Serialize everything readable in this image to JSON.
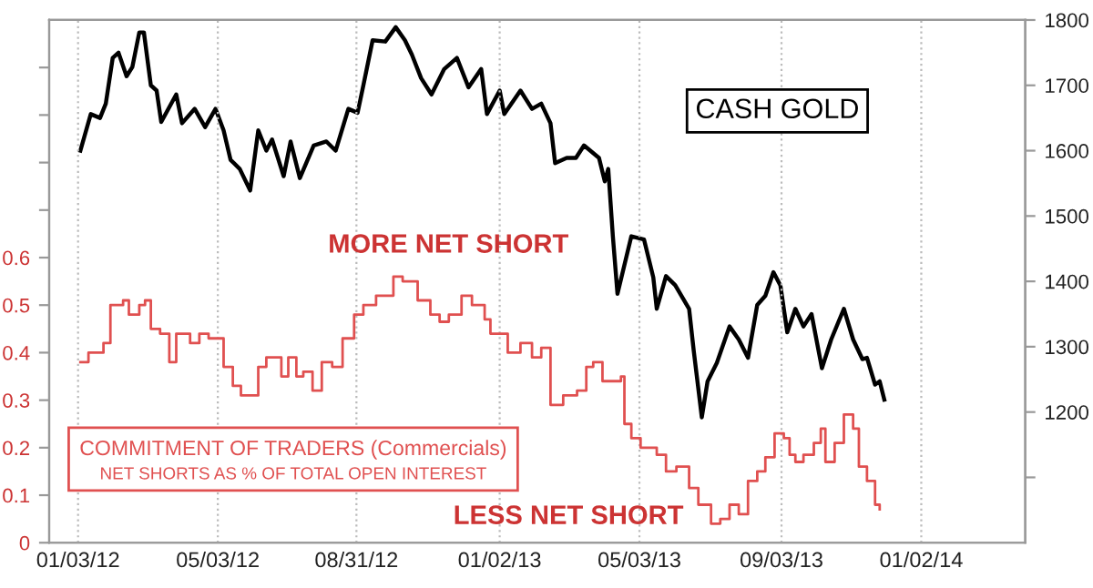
{
  "chart_data": {
    "type": "line",
    "xlim": [
      "2011-12-09",
      "2014-04-02"
    ],
    "xticks": [
      {
        "value": "2012-01-03",
        "label": "01/03/12"
      },
      {
        "value": "2012-05-03",
        "label": "05/03/12"
      },
      {
        "value": "2012-08-31",
        "label": "08/31/12"
      },
      {
        "value": "2013-01-02",
        "label": "01/02/13"
      },
      {
        "value": "2013-05-03",
        "label": "05/03/13"
      },
      {
        "value": "2013-09-03",
        "label": "09/03/13"
      },
      {
        "value": "2014-01-02",
        "label": "01/02/14"
      }
    ],
    "ylim": [
      0,
      1.1
    ],
    "yticks": [
      0,
      0.1,
      0.2,
      0.3,
      0.4,
      0.5,
      0.6,
      {
        "value": 0.7,
        "label": null
      },
      {
        "value": 0.8,
        "label": null
      },
      {
        "value": 0.9,
        "label": null
      },
      {
        "value": 1.0,
        "label": null
      }
    ],
    "y2lim": [
      1000,
      1800
    ],
    "y2ticks": [
      {
        "value": 1100,
        "label": null
      },
      1200,
      1300,
      1400,
      1500,
      1600,
      1700,
      1800
    ],
    "grid": "x",
    "legend": false,
    "marker": "none",
    "annotations": [
      "MORE NET SHORT",
      "NET SHORTS AS % OF TOTAL OPEN INTEREST",
      "LESS NET SHORT"
    ],
    "series": [
      {
        "name": "CASH GOLD",
        "axis": "y2",
        "color": "#000000",
        "x": [
          "2012-01-05",
          "2012-01-14",
          "2012-01-22",
          "2012-01-27",
          "2012-02-02",
          "2012-02-07",
          "2012-02-14",
          "2012-02-19",
          "2012-02-25",
          "2012-02-29",
          "2012-03-06",
          "2012-03-11",
          "2012-03-15",
          "2012-03-28",
          "2012-04-02",
          "2012-04-13",
          "2012-04-22",
          "2012-05-01",
          "2012-05-08",
          "2012-05-14",
          "2012-05-22",
          "2012-05-31",
          "2012-06-07",
          "2012-06-14",
          "2012-06-19",
          "2012-06-29",
          "2012-07-05",
          "2012-07-13",
          "2012-07-25",
          "2012-08-05",
          "2012-08-13",
          "2012-08-24",
          "2012-09-01",
          "2012-09-06",
          "2012-09-14",
          "2012-09-25",
          "2012-10-04",
          "2012-10-12",
          "2012-10-18",
          "2012-10-26",
          "2012-11-04",
          "2012-11-15",
          "2012-11-26",
          "2012-12-06",
          "2012-12-17",
          "2012-12-22",
          "2013-01-02",
          "2013-01-06",
          "2013-01-20",
          "2013-01-30",
          "2013-02-07",
          "2013-02-15",
          "2013-02-19",
          "2013-03-01",
          "2013-03-09",
          "2013-03-16",
          "2013-03-29",
          "2013-04-03",
          "2013-04-06",
          "2013-04-10",
          "2013-04-14",
          "2013-04-26",
          "2013-05-07",
          "2013-05-15",
          "2013-05-18",
          "2013-05-26",
          "2013-06-03",
          "2013-06-15",
          "2013-06-19",
          "2013-06-26",
          "2013-07-01",
          "2013-07-09",
          "2013-07-20",
          "2013-07-28",
          "2013-08-05",
          "2013-08-13",
          "2013-08-20",
          "2013-08-27",
          "2013-09-02",
          "2013-09-08",
          "2013-09-15",
          "2013-09-22",
          "2013-09-29",
          "2013-10-08",
          "2013-10-16",
          "2013-10-27",
          "2013-11-04",
          "2013-11-12",
          "2013-11-16",
          "2013-11-23",
          "2013-11-27",
          "2013-12-01"
        ],
        "values": [
          1600,
          1656,
          1650,
          1672,
          1742,
          1750,
          1714,
          1728,
          1781,
          1781,
          1700,
          1692,
          1644,
          1686,
          1642,
          1664,
          1636,
          1664,
          1631,
          1586,
          1572,
          1539,
          1631,
          1600,
          1617,
          1561,
          1614,
          1558,
          1608,
          1614,
          1600,
          1664,
          1658,
          1700,
          1769,
          1767,
          1789,
          1769,
          1747,
          1711,
          1686,
          1725,
          1742,
          1697,
          1725,
          1656,
          1692,
          1656,
          1692,
          1664,
          1672,
          1642,
          1581,
          1589,
          1589,
          1608,
          1589,
          1553,
          1572,
          1469,
          1381,
          1469,
          1464,
          1406,
          1358,
          1408,
          1394,
          1358,
          1294,
          1192,
          1247,
          1275,
          1331,
          1311,
          1283,
          1364,
          1378,
          1414,
          1394,
          1322,
          1358,
          1331,
          1350,
          1267,
          1311,
          1358,
          1311,
          1281,
          1283,
          1242,
          1247,
          1219
        ]
      },
      {
        "name": "COMMITMENT OF TRADERS (Commercials)",
        "type": "step",
        "color": "#e05050",
        "x": [
          "2012-01-05",
          "2012-01-12",
          "2012-01-25",
          "2012-01-31",
          "2012-02-11",
          "2012-02-16",
          "2012-02-25",
          "2012-03-01",
          "2012-03-06",
          "2012-03-14",
          "2012-03-22",
          "2012-03-28",
          "2012-04-09",
          "2012-04-17",
          "2012-04-25",
          "2012-05-08",
          "2012-05-16",
          "2012-05-23",
          "2012-06-07",
          "2012-06-14",
          "2012-06-27",
          "2012-07-03",
          "2012-07-10",
          "2012-07-16",
          "2012-07-24",
          "2012-08-01",
          "2012-08-10",
          "2012-08-19",
          "2012-08-29",
          "2012-09-06",
          "2012-09-17",
          "2012-10-02",
          "2012-10-10",
          "2012-10-23",
          "2012-11-03",
          "2012-11-11",
          "2012-11-19",
          "2012-11-30",
          "2012-12-09",
          "2012-12-20",
          "2012-12-25",
          "2013-01-09",
          "2013-01-20",
          "2013-01-30",
          "2013-02-07",
          "2013-02-15",
          "2013-02-26",
          "2013-03-10",
          "2013-03-18",
          "2013-03-24",
          "2013-04-01",
          "2013-04-17",
          "2013-04-20",
          "2013-04-26",
          "2013-05-04",
          "2013-05-18",
          "2013-05-26",
          "2013-06-04",
          "2013-06-15",
          "2013-06-23",
          "2013-07-04",
          "2013-07-12",
          "2013-07-20",
          "2013-07-28",
          "2013-08-05",
          "2013-08-13",
          "2013-08-20",
          "2013-08-28",
          "2013-09-05",
          "2013-09-10",
          "2013-09-15",
          "2013-09-22",
          "2013-10-01",
          "2013-10-07",
          "2013-10-11",
          "2013-10-19",
          "2013-10-27",
          "2013-11-04",
          "2013-11-09",
          "2013-11-16",
          "2013-11-23",
          "2013-11-27"
        ],
        "values": [
          0.38,
          0.4,
          0.42,
          0.5,
          0.51,
          0.48,
          0.5,
          0.51,
          0.45,
          0.44,
          0.38,
          0.44,
          0.42,
          0.44,
          0.43,
          0.37,
          0.33,
          0.31,
          0.37,
          0.39,
          0.35,
          0.39,
          0.35,
          0.36,
          0.32,
          0.38,
          0.37,
          0.43,
          0.48,
          0.5,
          0.52,
          0.56,
          0.55,
          0.51,
          0.48,
          0.465,
          0.48,
          0.52,
          0.5,
          0.47,
          0.44,
          0.4,
          0.42,
          0.39,
          0.41,
          0.29,
          0.31,
          0.32,
          0.37,
          0.38,
          0.34,
          0.35,
          0.25,
          0.22,
          0.2,
          0.185,
          0.15,
          0.16,
          0.115,
          0.08,
          0.04,
          0.05,
          0.08,
          0.06,
          0.13,
          0.15,
          0.18,
          0.23,
          0.22,
          0.185,
          0.17,
          0.185,
          0.21,
          0.24,
          0.17,
          0.21,
          0.27,
          0.24,
          0.16,
          0.13,
          0.08,
          0.07
        ]
      }
    ]
  }
}
